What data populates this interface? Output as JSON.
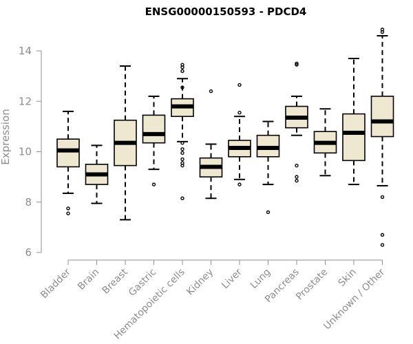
{
  "chart_data": {
    "type": "box",
    "title": "ENSG00000150593 - PDCD4",
    "xlabel": "",
    "ylabel": "Expression",
    "ylim": [
      6,
      15
    ],
    "yticks": [
      6,
      8,
      10,
      12,
      14
    ],
    "grid": false,
    "legend": "none",
    "colors": {
      "box_fill": "#efe8d1",
      "box_stroke": "#000000",
      "axis": "#8c8c8c"
    },
    "categories": [
      "Bladder",
      "Brain",
      "Breast",
      "Gastric",
      "Hematopoietic cells",
      "Kidney",
      "Liver",
      "Lung",
      "Pancreas",
      "Prostate",
      "Skin",
      "Unknown / Other"
    ],
    "boxes": [
      {
        "category": "Bladder",
        "whisker_low": 8.35,
        "q1": 9.4,
        "median": 10.05,
        "q3": 10.5,
        "whisker_high": 11.6,
        "outliers": [
          7.75,
          7.55
        ]
      },
      {
        "category": "Brain",
        "whisker_low": 7.95,
        "q1": 8.7,
        "median": 9.1,
        "q3": 9.5,
        "whisker_high": 10.25,
        "outliers": []
      },
      {
        "category": "Breast",
        "whisker_low": 7.3,
        "q1": 9.45,
        "median": 10.35,
        "q3": 11.25,
        "whisker_high": 13.4,
        "outliers": []
      },
      {
        "category": "Gastric",
        "whisker_low": 9.3,
        "q1": 10.35,
        "median": 10.7,
        "q3": 11.45,
        "whisker_high": 12.2,
        "outliers": [
          8.7
        ]
      },
      {
        "category": "Hematopoietic cells",
        "whisker_low": 10.4,
        "q1": 11.4,
        "median": 11.8,
        "q3": 12.1,
        "whisker_high": 12.9,
        "outliers": [
          13.45,
          13.35,
          13.2,
          12.55,
          10.35,
          10.1,
          9.95,
          9.7,
          9.55,
          9.45,
          8.15
        ]
      },
      {
        "category": "Kidney",
        "whisker_low": 8.15,
        "q1": 9.0,
        "median": 9.4,
        "q3": 9.75,
        "whisker_high": 10.3,
        "outliers": [
          12.4
        ]
      },
      {
        "category": "Liver",
        "whisker_low": 8.9,
        "q1": 9.8,
        "median": 10.15,
        "q3": 10.45,
        "whisker_high": 11.4,
        "outliers": [
          12.65,
          11.55,
          8.7
        ]
      },
      {
        "category": "Lung",
        "whisker_low": 8.7,
        "q1": 9.8,
        "median": 10.15,
        "q3": 10.65,
        "whisker_high": 11.2,
        "outliers": [
          7.6
        ]
      },
      {
        "category": "Pancreas",
        "whisker_low": 10.65,
        "q1": 10.95,
        "median": 11.35,
        "q3": 11.8,
        "whisker_high": 12.2,
        "outliers": [
          13.5,
          13.45,
          9.45,
          9.0,
          8.85
        ]
      },
      {
        "category": "Prostate",
        "whisker_low": 9.05,
        "q1": 9.95,
        "median": 10.35,
        "q3": 10.8,
        "whisker_high": 11.7,
        "outliers": []
      },
      {
        "category": "Skin",
        "whisker_low": 8.7,
        "q1": 9.65,
        "median": 10.75,
        "q3": 11.5,
        "whisker_high": 13.7,
        "outliers": []
      },
      {
        "category": "Unknown / Other",
        "whisker_low": 8.65,
        "q1": 10.6,
        "median": 11.2,
        "q3": 12.2,
        "whisker_high": 14.6,
        "outliers": [
          14.85,
          14.75,
          8.2,
          6.7,
          6.3
        ]
      }
    ]
  }
}
